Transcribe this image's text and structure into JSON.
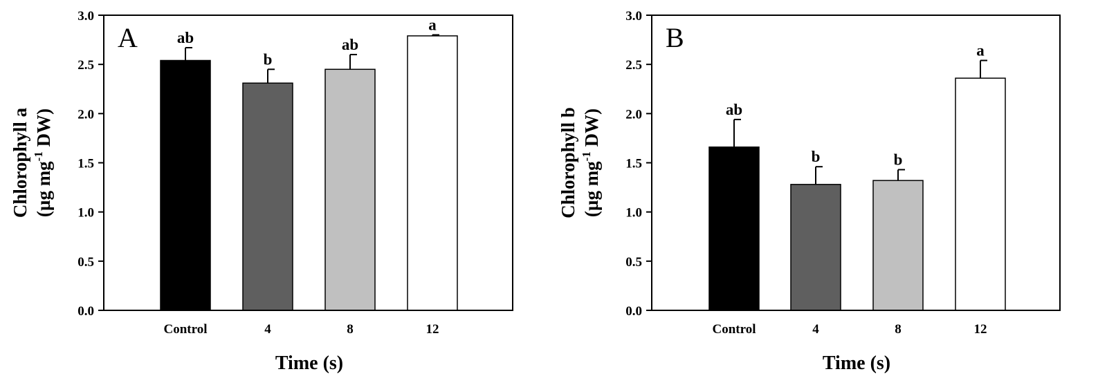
{
  "chart_data": [
    {
      "type": "bar",
      "panel_label": "A",
      "categories": [
        "Control",
        "4",
        "8",
        "12"
      ],
      "values": [
        2.54,
        2.31,
        2.45,
        2.79
      ],
      "errors": [
        0.13,
        0.14,
        0.15,
        0.01
      ],
      "significance": [
        "ab",
        "b",
        "ab",
        "a"
      ],
      "bar_colors": [
        "#000000",
        "#5f5f5f",
        "#c0c0c0",
        "#ffffff"
      ],
      "xlabel": "Time (s)",
      "ylabel_line1": "Chlorophyll a",
      "ylabel_line2_pre": "(µg mg",
      "ylabel_line2_sup": "-1",
      "ylabel_line2_post": " DW)",
      "ylim": [
        0,
        3.0
      ],
      "yticks": [
        "0.0",
        "0.5",
        "1.0",
        "1.5",
        "2.0",
        "2.5",
        "3.0"
      ],
      "grid": false
    },
    {
      "type": "bar",
      "panel_label": "B",
      "categories": [
        "Control",
        "4",
        "8",
        "12"
      ],
      "values": [
        1.66,
        1.28,
        1.32,
        2.36
      ],
      "errors": [
        0.28,
        0.18,
        0.11,
        0.18
      ],
      "significance": [
        "ab",
        "b",
        "b",
        "a"
      ],
      "bar_colors": [
        "#000000",
        "#5f5f5f",
        "#c0c0c0",
        "#ffffff"
      ],
      "xlabel": "Time (s)",
      "ylabel_line1": "Chlorophyll b",
      "ylabel_line2_pre": "(µg mg",
      "ylabel_line2_sup": "-1",
      "ylabel_line2_post": " DW)",
      "ylim": [
        0,
        3.0
      ],
      "yticks": [
        "0.0",
        "0.5",
        "1.0",
        "1.5",
        "2.0",
        "2.5",
        "3.0"
      ],
      "grid": false
    }
  ]
}
